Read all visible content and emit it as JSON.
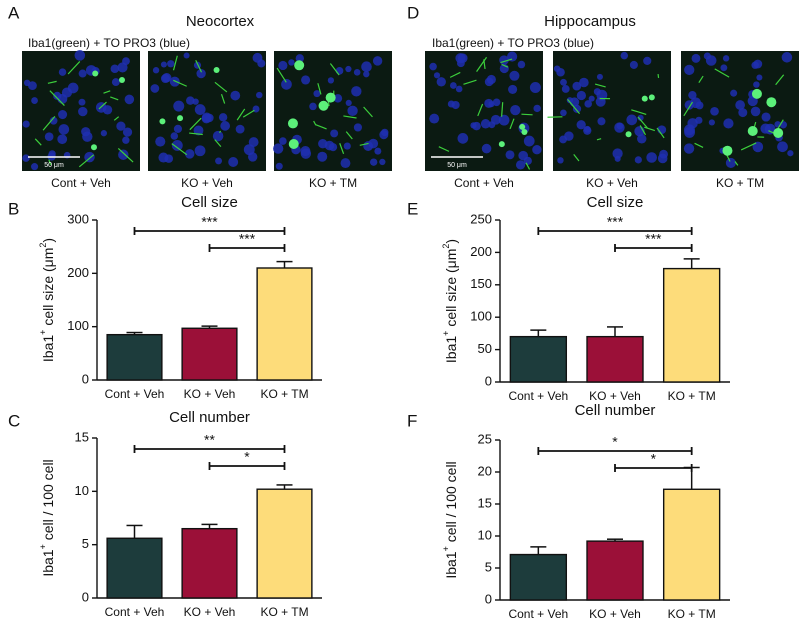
{
  "panels": [
    {
      "letter": "A",
      "title": "Neocortex",
      "stain": "Iba1(green) + TO PRO3 (blue)",
      "captions": [
        "Cont + Veh",
        "KO + Veh",
        "KO + TM"
      ],
      "scale": "50 μm"
    },
    {
      "letter": "D",
      "title": "Hippocampus",
      "stain": "Iba1(green) + TO PRO3 (blue)",
      "captions": [
        "Cont + Veh",
        "KO + Veh",
        "KO + TM"
      ],
      "scale": "50 μm"
    }
  ],
  "chart_data": [
    {
      "type": "bar",
      "letter": "B",
      "title": "Cell size",
      "y_label": [
        "Iba1",
        "+",
        " cell size (μm",
        "2",
        ")"
      ],
      "categories": [
        "Cont + Veh",
        "KO + Veh",
        "KO + TM"
      ],
      "values": [
        85,
        97,
        210
      ],
      "errors": [
        4,
        4,
        12
      ],
      "colors": [
        "#1d3c3c",
        "#9b1038",
        "#fddc7a"
      ],
      "ylim": [
        0,
        300
      ],
      "yticks": [
        0,
        100,
        200,
        300
      ],
      "annotations": [
        {
          "text": "***",
          "from": 0,
          "to": 2
        },
        {
          "text": "***",
          "from": 1,
          "to": 2
        }
      ]
    },
    {
      "type": "bar",
      "letter": "E",
      "title": "Cell size",
      "y_label": [
        "Iba1",
        "+",
        " cell size (μm",
        "2",
        ")"
      ],
      "categories": [
        "Cont + Veh",
        "KO + Veh",
        "KO + TM"
      ],
      "values": [
        70,
        70,
        175
      ],
      "errors": [
        10,
        15,
        15
      ],
      "colors": [
        "#1d3c3c",
        "#9b1038",
        "#fddc7a"
      ],
      "ylim": [
        0,
        250
      ],
      "yticks": [
        0,
        50,
        100,
        150,
        200,
        250
      ],
      "annotations": [
        {
          "text": "***",
          "from": 0,
          "to": 2
        },
        {
          "text": "***",
          "from": 1,
          "to": 2
        }
      ]
    },
    {
      "type": "bar",
      "letter": "C",
      "title": "Cell number",
      "y_label": [
        "Iba1",
        "+",
        " cell / 100 cell"
      ],
      "categories": [
        "Cont + Veh",
        "KO + Veh",
        "KO + TM"
      ],
      "values": [
        5.6,
        6.5,
        10.2
      ],
      "errors": [
        1.2,
        0.4,
        0.4
      ],
      "colors": [
        "#1d3c3c",
        "#9b1038",
        "#fddc7a"
      ],
      "ylim": [
        0,
        15
      ],
      "yticks": [
        0,
        5,
        10,
        15
      ],
      "annotations": [
        {
          "text": "**",
          "from": 0,
          "to": 2
        },
        {
          "text": "*",
          "from": 1,
          "to": 2
        }
      ]
    },
    {
      "type": "bar",
      "letter": "F",
      "title": "Cell number",
      "y_label": [
        "Iba1",
        "+",
        " cell / 100 cell"
      ],
      "categories": [
        "Cont + Veh",
        "KO + Veh",
        "KO + TM"
      ],
      "values": [
        7.1,
        9.2,
        17.3
      ],
      "errors": [
        1.2,
        0.3,
        3.4
      ],
      "colors": [
        "#1d3c3c",
        "#9b1038",
        "#fddc7a"
      ],
      "ylim": [
        0,
        25
      ],
      "yticks": [
        0,
        5,
        10,
        15,
        20,
        25
      ],
      "annotations": [
        {
          "text": "*",
          "from": 0,
          "to": 2
        },
        {
          "text": "*",
          "from": 1,
          "to": 2
        }
      ]
    }
  ]
}
